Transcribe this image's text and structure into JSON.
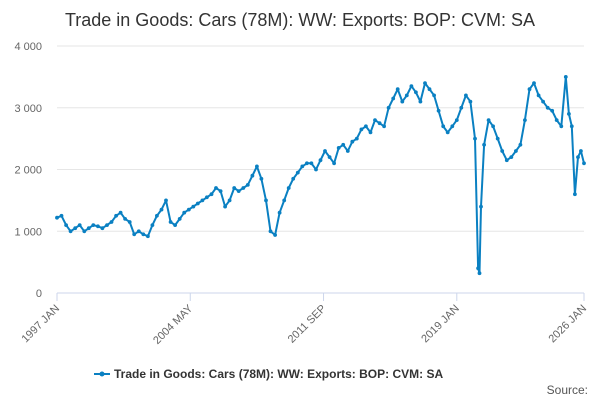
{
  "colors": {
    "series": "#0a80c2",
    "grid": "#e6e6e6",
    "axis": "#ccd6eb",
    "title": "#333333",
    "tick": "#666666"
  },
  "chart_data": {
    "type": "line",
    "title": "Trade in Goods: Cars (78M): WW: Exports: BOP: CVM: SA",
    "xlabel": "",
    "ylabel": "",
    "ylim": [
      0,
      4000
    ],
    "yticks": [
      0,
      1000,
      2000,
      3000,
      4000
    ],
    "ytick_labels": [
      "0",
      "1 000",
      "2 000",
      "3 000",
      "4 000"
    ],
    "xlim": [
      1997.0,
      2026.0
    ],
    "xticks": [
      {
        "label": "1997 JAN",
        "x": 1997.0
      },
      {
        "label": "2004 MAY",
        "x": 2004.333
      },
      {
        "label": "2011 SEP",
        "x": 2011.667
      },
      {
        "label": "2019 JAN",
        "x": 2019.0
      },
      {
        "label": "2026 JAN",
        "x": 2026.0
      }
    ],
    "legend_position": "bottom-center",
    "series": [
      {
        "name": "Trade in Goods: Cars (78M): WW: Exports: BOP: CVM: SA",
        "x": [
          1997.0,
          1997.25,
          1997.5,
          1997.75,
          1998.0,
          1998.25,
          1998.5,
          1998.75,
          1999.0,
          1999.25,
          1999.5,
          1999.75,
          2000.0,
          2000.25,
          2000.5,
          2000.75,
          2001.0,
          2001.25,
          2001.5,
          2001.75,
          2002.0,
          2002.25,
          2002.5,
          2002.75,
          2003.0,
          2003.25,
          2003.5,
          2003.75,
          2004.0,
          2004.25,
          2004.5,
          2004.75,
          2005.0,
          2005.25,
          2005.5,
          2005.75,
          2006.0,
          2006.25,
          2006.5,
          2006.75,
          2007.0,
          2007.25,
          2007.5,
          2007.75,
          2008.0,
          2008.25,
          2008.5,
          2008.75,
          2009.0,
          2009.25,
          2009.5,
          2009.75,
          2010.0,
          2010.25,
          2010.5,
          2010.75,
          2011.0,
          2011.25,
          2011.5,
          2011.75,
          2012.0,
          2012.25,
          2012.5,
          2012.75,
          2013.0,
          2013.25,
          2013.5,
          2013.75,
          2014.0,
          2014.25,
          2014.5,
          2014.75,
          2015.0,
          2015.25,
          2015.5,
          2015.75,
          2016.0,
          2016.25,
          2016.5,
          2016.75,
          2017.0,
          2017.25,
          2017.5,
          2017.75,
          2018.0,
          2018.25,
          2018.5,
          2018.75,
          2019.0,
          2019.25,
          2019.5,
          2019.75,
          2020.0,
          2020.17,
          2020.25,
          2020.33,
          2020.5,
          2020.75,
          2021.0,
          2021.25,
          2021.5,
          2021.75,
          2022.0,
          2022.25,
          2022.5,
          2022.75,
          2023.0,
          2023.25,
          2023.5,
          2023.75,
          2024.0,
          2024.25,
          2024.5,
          2024.75,
          2025.0,
          2025.17,
          2025.33,
          2025.5,
          2025.67,
          2025.83,
          2026.0
        ],
        "values": [
          1220,
          1250,
          1100,
          1000,
          1050,
          1100,
          1000,
          1050,
          1100,
          1080,
          1050,
          1100,
          1150,
          1250,
          1300,
          1200,
          1150,
          950,
          1000,
          950,
          920,
          1100,
          1250,
          1350,
          1500,
          1150,
          1100,
          1200,
          1300,
          1350,
          1400,
          1450,
          1500,
          1550,
          1600,
          1700,
          1650,
          1400,
          1500,
          1700,
          1650,
          1700,
          1750,
          1900,
          2050,
          1850,
          1500,
          1000,
          940,
          1300,
          1500,
          1700,
          1850,
          1950,
          2050,
          2100,
          2100,
          2000,
          2150,
          2300,
          2200,
          2100,
          2350,
          2400,
          2300,
          2450,
          2500,
          2650,
          2700,
          2600,
          2800,
          2750,
          2700,
          3000,
          3150,
          3300,
          3100,
          3200,
          3350,
          3250,
          3100,
          3400,
          3300,
          3200,
          2950,
          2700,
          2600,
          2700,
          2800,
          3000,
          3200,
          3100,
          2500,
          400,
          320,
          1400,
          2400,
          2800,
          2700,
          2500,
          2300,
          2150,
          2200,
          2300,
          2400,
          2800,
          3300,
          3400,
          3200,
          3100,
          3000,
          2950,
          2800,
          2700,
          3500,
          2900,
          2700,
          1600,
          2200,
          2300,
          2100
        ]
      }
    ]
  },
  "legend": {
    "label": "Trade in Goods: Cars (78M): WW: Exports: BOP: CVM: SA"
  },
  "credits": {
    "text": "Source:"
  }
}
